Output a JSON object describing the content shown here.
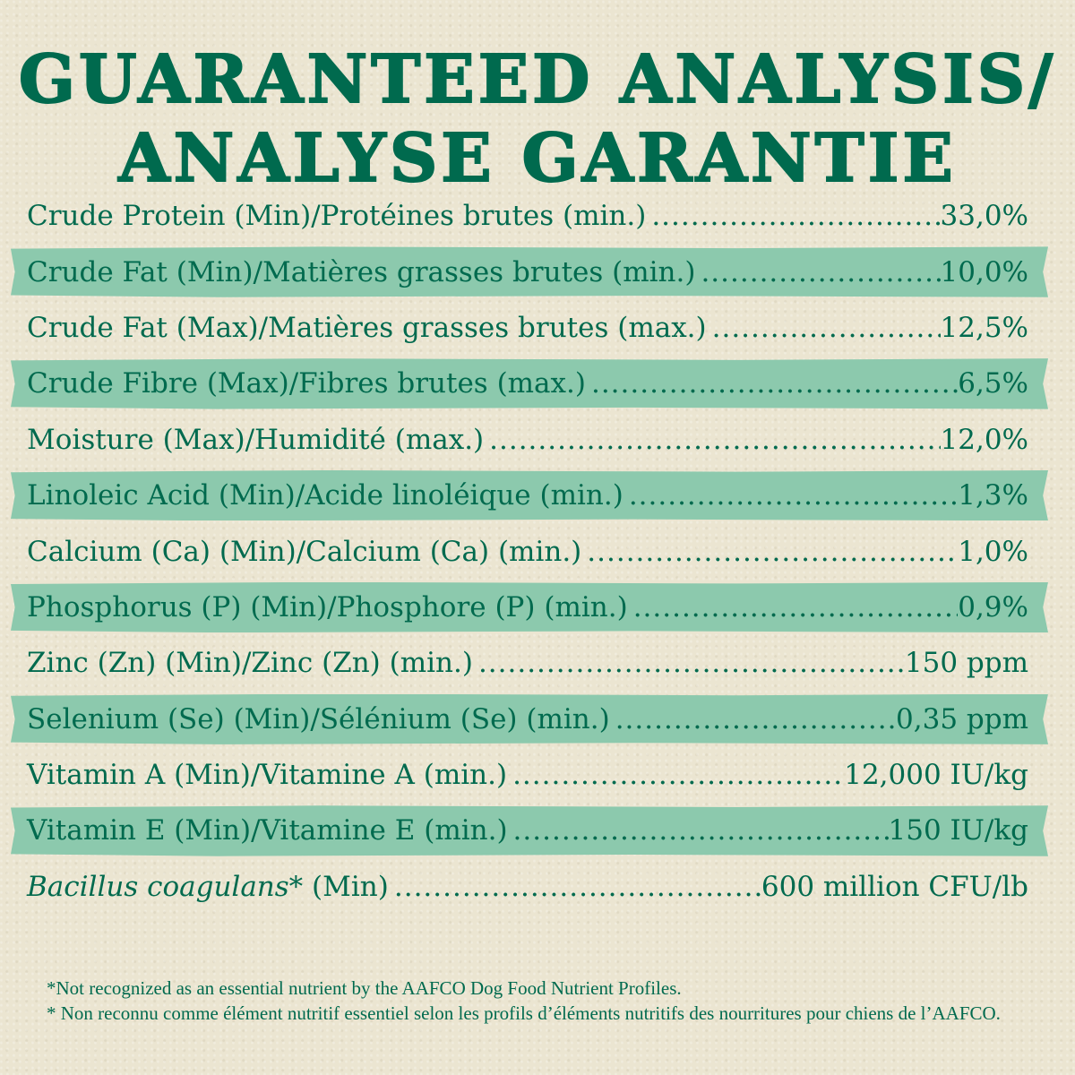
{
  "title": {
    "line1": "GUARANTEED ANALYSIS/",
    "line2": "ANALYSE GARANTIE"
  },
  "colors": {
    "text": "#006a4e",
    "band": "#8cc9ad",
    "background": "#ebe5d1"
  },
  "rows": [
    {
      "label": "Crude Protein (Min)/Protéines brutes (min.)",
      "value": "33,0%"
    },
    {
      "label": "Crude Fat (Min)/Matières grasses brutes (min.)",
      "value": "10,0%"
    },
    {
      "label": "Crude Fat (Max)/Matières grasses brutes (max.)",
      "value": "12,5%"
    },
    {
      "label": "Crude Fibre (Max)/Fibres brutes (max.)",
      "value": "6,5%"
    },
    {
      "label": "Moisture (Max)/Humidité (max.)",
      "value": "12,0%"
    },
    {
      "label": "Linoleic Acid (Min)/Acide linoléique (min.)",
      "value": "1,3%"
    },
    {
      "label": "Calcium (Ca) (Min)/Calcium (Ca) (min.)",
      "value": "1,0%"
    },
    {
      "label": "Phosphorus (P) (Min)/Phosphore (P) (min.)",
      "value": "0,9%"
    },
    {
      "label": "Zinc (Zn) (Min)/Zinc (Zn) (min.)",
      "value": "150 ppm"
    },
    {
      "label": "Selenium (Se) (Min)/Sélénium (Se) (min.)",
      "value": "0,35 ppm"
    },
    {
      "label": "Vitamin A (Min)/Vitamine A (min.)",
      "value": "12,000 IU/kg"
    },
    {
      "label": "Vitamin E (Min)/Vitamine E (min.)",
      "value": "150 IU/kg"
    },
    {
      "label_italic": "Bacillus coagulans*",
      "label_rest": " (Min)",
      "value": "600 million CFU/lb"
    }
  ],
  "footnotes": {
    "en": "*Not recognized as an essential nutrient by the AAFCO Dog Food Nutrient Profiles.",
    "fr": "* Non reconnu comme élément nutritif essentiel selon les profils d’éléments nutritifs des nourritures pour chiens de l’AAFCO."
  }
}
